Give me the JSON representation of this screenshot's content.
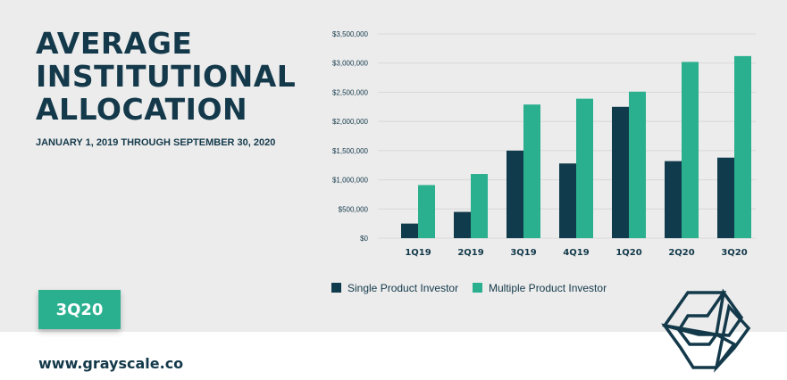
{
  "header": {
    "title": "AVERAGE\nINSTITUTIONAL\nALLOCATION",
    "subtitle": "JANUARY 1, 2019 THROUGH SEPTEMBER 30, 2020"
  },
  "badge": {
    "label": "3Q20"
  },
  "footer": {
    "website": "www.grayscale.co"
  },
  "colors": {
    "single": "#0f3b4c",
    "multiple": "#2bb08f",
    "brand_dark": "#13394a"
  },
  "logo": {
    "icon": "grayscale-logo-icon"
  },
  "chart_data": {
    "type": "bar",
    "categories": [
      "1Q19",
      "2Q19",
      "3Q19",
      "4Q19",
      "1Q20",
      "2Q20",
      "3Q20"
    ],
    "series": [
      {
        "name": "Single Product Investor",
        "values": [
          250000,
          450000,
          1500000,
          1280000,
          2250000,
          1320000,
          1380000
        ]
      },
      {
        "name": "Multiple Product Investor",
        "values": [
          910000,
          1100000,
          2290000,
          2390000,
          2510000,
          3020000,
          3120000
        ]
      }
    ],
    "yticks": [
      "$0",
      "$500,000",
      "$1,000,000",
      "$1,500,000",
      "$2,000,000",
      "$2,500,000",
      "$3,000,000",
      "$3,500,000"
    ],
    "ylim": [
      0,
      3500000
    ],
    "grid": true,
    "legend": "bottom"
  }
}
